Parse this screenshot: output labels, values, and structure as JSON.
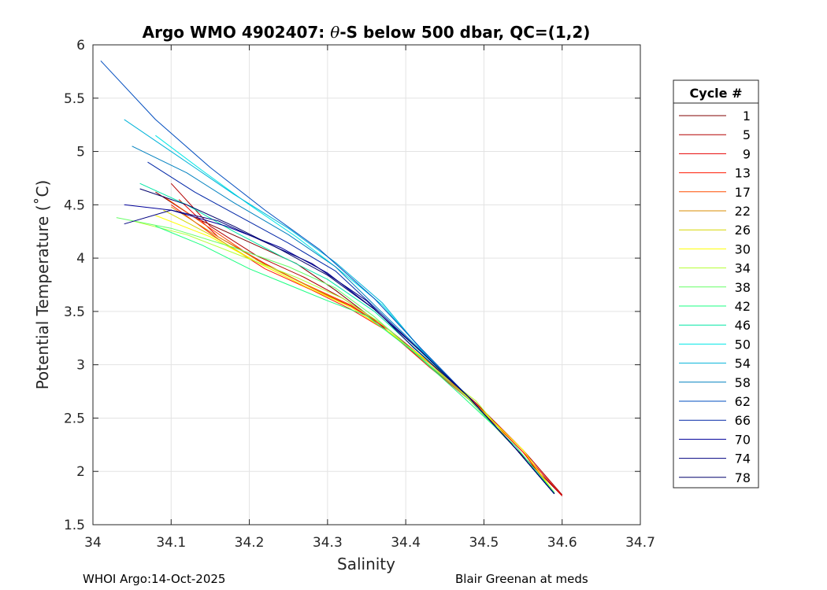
{
  "chart_data": {
    "type": "line",
    "title": "Argo WMO 4902407: θ-S below 500 dbar,  QC=(1,2)",
    "title_parts": {
      "prefix": "Argo WMO 4902407: ",
      "theta": "θ",
      "suffix": "-S below 500 dbar,  QC=(1,2)"
    },
    "xlabel": "Salinity",
    "ylabel": "Potential Temperature (˚C)",
    "xlim": [
      34.0,
      34.7
    ],
    "ylim": [
      1.5,
      6.0
    ],
    "xticks": [
      34.0,
      34.1,
      34.2,
      34.3,
      34.4,
      34.5,
      34.6,
      34.7
    ],
    "xtick_labels": [
      "34",
      "34.1",
      "34.2",
      "34.3",
      "34.4",
      "34.5",
      "34.6",
      "34.7"
    ],
    "yticks": [
      1.5,
      2.0,
      2.5,
      3.0,
      3.5,
      4.0,
      4.5,
      5.0,
      5.5,
      6.0
    ],
    "ytick_labels": [
      "1.5",
      "2",
      "2.5",
      "3",
      "3.5",
      "4",
      "4.5",
      "5",
      "5.5",
      "6"
    ],
    "grid": true,
    "legend": {
      "title": "Cycle #",
      "placement": "outside-right",
      "entries": [
        {
          "label": "1",
          "color": "#800000"
        },
        {
          "label": "5",
          "color": "#b30000"
        },
        {
          "label": "9",
          "color": "#e60000"
        },
        {
          "label": "13",
          "color": "#ff1a00"
        },
        {
          "label": "17",
          "color": "#ff4d00"
        },
        {
          "label": "22",
          "color": "#d98c00"
        },
        {
          "label": "26",
          "color": "#d6d600"
        },
        {
          "label": "30",
          "color": "#ffff00"
        },
        {
          "label": "34",
          "color": "#b3ff33"
        },
        {
          "label": "38",
          "color": "#66ff66"
        },
        {
          "label": "42",
          "color": "#1aff80"
        },
        {
          "label": "46",
          "color": "#00e6a6"
        },
        {
          "label": "50",
          "color": "#00e6e6"
        },
        {
          "label": "54",
          "color": "#00b3d9"
        },
        {
          "label": "58",
          "color": "#0080bf"
        },
        {
          "label": "62",
          "color": "#004dbf"
        },
        {
          "label": "66",
          "color": "#0026a6"
        },
        {
          "label": "70",
          "color": "#000099"
        },
        {
          "label": "74",
          "color": "#000080"
        },
        {
          "label": "78",
          "color": "#00006b"
        }
      ]
    },
    "series": [
      {
        "name": "1",
        "color": "#800000",
        "x": [
          34.08,
          34.13,
          34.2,
          34.26,
          34.31,
          34.36,
          34.42,
          34.48,
          34.54,
          34.6
        ],
        "y": [
          4.62,
          4.38,
          4.15,
          3.95,
          3.7,
          3.42,
          3.05,
          2.68,
          2.22,
          1.77
        ]
      },
      {
        "name": "5",
        "color": "#b30000",
        "x": [
          34.1,
          34.15,
          34.21,
          34.27,
          34.32,
          34.37,
          34.43,
          34.49,
          34.55,
          34.6
        ],
        "y": [
          4.7,
          4.3,
          4.02,
          3.82,
          3.62,
          3.38,
          3.02,
          2.64,
          2.2,
          1.78
        ]
      },
      {
        "name": "9",
        "color": "#e60000",
        "x": [
          34.11,
          34.16,
          34.22,
          34.28,
          34.33,
          34.38,
          34.43,
          34.49,
          34.55,
          34.6
        ],
        "y": [
          4.55,
          4.2,
          3.95,
          3.72,
          3.55,
          3.32,
          2.98,
          2.62,
          2.18,
          1.77
        ]
      },
      {
        "name": "13",
        "color": "#ff1a00",
        "x": [
          34.1,
          34.16,
          34.22,
          34.28,
          34.33,
          34.38,
          34.43,
          34.49,
          34.55,
          34.59
        ],
        "y": [
          4.5,
          4.18,
          3.9,
          3.7,
          3.52,
          3.3,
          2.98,
          2.62,
          2.18,
          1.8
        ]
      },
      {
        "name": "17",
        "color": "#ff4d00",
        "x": [
          34.09,
          34.15,
          34.21,
          34.27,
          34.33,
          34.38,
          34.43,
          34.49,
          34.55,
          34.59
        ],
        "y": [
          4.58,
          4.28,
          3.98,
          3.76,
          3.56,
          3.32,
          3.0,
          2.63,
          2.2,
          1.8
        ]
      },
      {
        "name": "22",
        "color": "#d98c00",
        "x": [
          34.1,
          34.16,
          34.22,
          34.28,
          34.33,
          34.38,
          34.44,
          34.49,
          34.55,
          34.59
        ],
        "y": [
          4.48,
          4.2,
          3.94,
          3.72,
          3.54,
          3.3,
          2.96,
          2.62,
          2.2,
          1.8
        ]
      },
      {
        "name": "26",
        "color": "#d6d600",
        "x": [
          34.09,
          34.15,
          34.21,
          34.27,
          34.33,
          34.38,
          34.44,
          34.49,
          34.55,
          34.59
        ],
        "y": [
          4.45,
          4.22,
          3.96,
          3.74,
          3.54,
          3.3,
          2.97,
          2.62,
          2.2,
          1.8
        ]
      },
      {
        "name": "30",
        "color": "#ffff00",
        "x": [
          34.08,
          34.15,
          34.21,
          34.27,
          34.33,
          34.38,
          34.44,
          34.49,
          34.55,
          34.59
        ],
        "y": [
          4.4,
          4.2,
          3.96,
          3.74,
          3.54,
          3.3,
          2.97,
          2.62,
          2.2,
          1.8
        ]
      },
      {
        "name": "34",
        "color": "#b3ff33",
        "x": [
          34.05,
          34.12,
          34.19,
          34.26,
          34.32,
          34.37,
          34.43,
          34.49,
          34.54,
          34.59
        ],
        "y": [
          4.35,
          4.22,
          4.02,
          3.82,
          3.62,
          3.38,
          3.0,
          2.66,
          2.22,
          1.8
        ]
      },
      {
        "name": "38",
        "color": "#66ff66",
        "x": [
          34.03,
          34.1,
          34.18,
          34.25,
          34.31,
          34.36,
          34.42,
          34.48,
          34.54,
          34.59
        ],
        "y": [
          4.38,
          4.28,
          4.1,
          3.92,
          3.72,
          3.45,
          3.06,
          2.68,
          2.22,
          1.8
        ]
      },
      {
        "name": "42",
        "color": "#1aff80",
        "x": [
          34.08,
          34.14,
          34.2,
          34.25,
          34.3,
          34.35,
          34.41,
          34.47,
          34.54,
          34.59
        ],
        "y": [
          4.3,
          4.12,
          3.9,
          3.75,
          3.6,
          3.46,
          3.12,
          2.72,
          2.24,
          1.8
        ]
      },
      {
        "name": "46",
        "color": "#00e6a6",
        "x": [
          34.06,
          34.12,
          34.18,
          34.24,
          34.3,
          34.36,
          34.42,
          34.48,
          34.54,
          34.59
        ],
        "y": [
          4.7,
          4.5,
          4.25,
          4.02,
          3.8,
          3.5,
          3.1,
          2.7,
          2.22,
          1.79
        ]
      },
      {
        "name": "50",
        "color": "#00e6e6",
        "x": [
          34.08,
          34.14,
          34.2,
          34.26,
          34.31,
          34.37,
          34.42,
          34.48,
          34.54,
          34.59
        ],
        "y": [
          5.15,
          4.82,
          4.5,
          4.2,
          3.92,
          3.56,
          3.14,
          2.7,
          2.22,
          1.79
        ]
      },
      {
        "name": "54",
        "color": "#00b3d9",
        "x": [
          34.04,
          34.11,
          34.18,
          34.25,
          34.31,
          34.37,
          34.42,
          34.48,
          34.54,
          34.59
        ],
        "y": [
          5.3,
          4.95,
          4.6,
          4.28,
          3.96,
          3.58,
          3.14,
          2.7,
          2.22,
          1.79
        ]
      },
      {
        "name": "58",
        "color": "#0080bf",
        "x": [
          34.05,
          34.12,
          34.18,
          34.25,
          34.31,
          34.36,
          34.42,
          34.48,
          34.54,
          34.59
        ],
        "y": [
          5.05,
          4.8,
          4.52,
          4.22,
          3.92,
          3.56,
          3.13,
          2.7,
          2.22,
          1.79
        ]
      },
      {
        "name": "62",
        "color": "#004dbf",
        "x": [
          34.01,
          34.08,
          34.15,
          34.22,
          34.29,
          34.36,
          34.42,
          34.48,
          34.54,
          34.59
        ],
        "y": [
          5.85,
          5.3,
          4.85,
          4.45,
          4.08,
          3.62,
          3.15,
          2.7,
          2.22,
          1.79
        ]
      },
      {
        "name": "66",
        "color": "#0026a6",
        "x": [
          34.07,
          34.13,
          34.19,
          34.25,
          34.31,
          34.36,
          34.42,
          34.48,
          34.54,
          34.59
        ],
        "y": [
          4.9,
          4.62,
          4.38,
          4.14,
          3.88,
          3.54,
          3.12,
          2.7,
          2.22,
          1.79
        ]
      },
      {
        "name": "70",
        "color": "#000099",
        "x": [
          34.04,
          34.1,
          34.17,
          34.24,
          34.3,
          34.36,
          34.42,
          34.48,
          34.54,
          34.59
        ],
        "y": [
          4.5,
          4.45,
          4.3,
          4.1,
          3.86,
          3.52,
          3.12,
          2.7,
          2.22,
          1.79
        ]
      },
      {
        "name": "74",
        "color": "#000080",
        "x": [
          34.04,
          34.1,
          34.16,
          34.22,
          34.28,
          34.35,
          34.41,
          34.48,
          34.54,
          34.59
        ],
        "y": [
          4.32,
          4.45,
          4.35,
          4.15,
          3.95,
          3.6,
          3.16,
          2.7,
          2.22,
          1.79
        ]
      },
      {
        "name": "78",
        "color": "#00006b",
        "x": [
          34.06,
          34.12,
          34.18,
          34.24,
          34.3,
          34.36,
          34.42,
          34.48,
          34.54,
          34.59
        ],
        "y": [
          4.65,
          4.5,
          4.3,
          4.08,
          3.84,
          3.52,
          3.12,
          2.7,
          2.22,
          1.79
        ]
      }
    ]
  },
  "footer": {
    "left": "WHOI Argo:14-Oct-2025",
    "right": "Blair Greenan at meds"
  }
}
